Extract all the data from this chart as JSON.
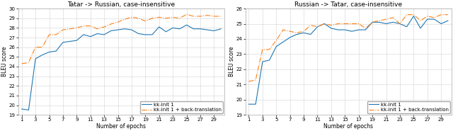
{
  "left_title": "Tatar -> Russian, case-insensitive",
  "right_title": "Russian -> Tatar, case-insensitive",
  "xlabel": "Number of epochs",
  "ylabel": "BLEU score",
  "legend_label1": "kk-init 1",
  "legend_label2": "kk-init 1 + back-translation",
  "left_blue": [
    19.6,
    19.5,
    24.8,
    25.2,
    25.5,
    25.6,
    26.5,
    26.6,
    26.7,
    27.3,
    27.1,
    27.4,
    27.3,
    27.7,
    27.8,
    27.9,
    27.8,
    27.4,
    27.3,
    27.3,
    28.1,
    27.6,
    28.0,
    27.9,
    28.3,
    27.9,
    27.9,
    27.8,
    27.7,
    27.9
  ],
  "left_orange": [
    24.3,
    24.4,
    26.0,
    26.0,
    27.3,
    27.3,
    27.8,
    27.9,
    28.0,
    28.2,
    28.2,
    27.9,
    28.1,
    28.4,
    28.6,
    28.9,
    29.1,
    29.0,
    28.7,
    29.0,
    29.1,
    29.0,
    29.1,
    29.0,
    29.4,
    29.2,
    29.2,
    29.3,
    29.2,
    29.2
  ],
  "right_blue": [
    19.7,
    19.7,
    22.5,
    22.6,
    23.5,
    23.8,
    24.1,
    24.3,
    24.4,
    24.3,
    24.8,
    25.0,
    24.7,
    24.6,
    24.6,
    24.5,
    24.6,
    24.6,
    25.1,
    25.1,
    25.0,
    25.1,
    25.0,
    24.8,
    25.5,
    24.7,
    25.3,
    25.3,
    25.0,
    25.2
  ],
  "right_orange": [
    21.2,
    21.3,
    23.3,
    23.3,
    23.9,
    24.6,
    24.5,
    24.4,
    24.5,
    24.9,
    24.8,
    25.0,
    24.9,
    25.0,
    25.0,
    25.0,
    25.0,
    24.7,
    25.1,
    25.2,
    25.3,
    25.4,
    25.0,
    25.6,
    25.6,
    25.2,
    25.5,
    25.4,
    25.6,
    25.6
  ],
  "left_ylim": [
    19,
    30
  ],
  "right_ylim": [
    19,
    26
  ],
  "left_yticks": [
    19,
    20,
    21,
    22,
    23,
    24,
    25,
    26,
    27,
    28,
    29,
    30
  ],
  "right_yticks": [
    19,
    20,
    21,
    22,
    23,
    24,
    25,
    26
  ],
  "xticks": [
    1,
    3,
    5,
    7,
    9,
    11,
    13,
    15,
    17,
    19,
    21,
    23,
    25,
    27,
    29
  ],
  "blue_color": "#1f77b4",
  "orange_color": "#ff7f0e",
  "title_fontsize": 6.5,
  "label_fontsize": 5.5,
  "tick_fontsize": 5.0,
  "legend_fontsize": 5.0
}
